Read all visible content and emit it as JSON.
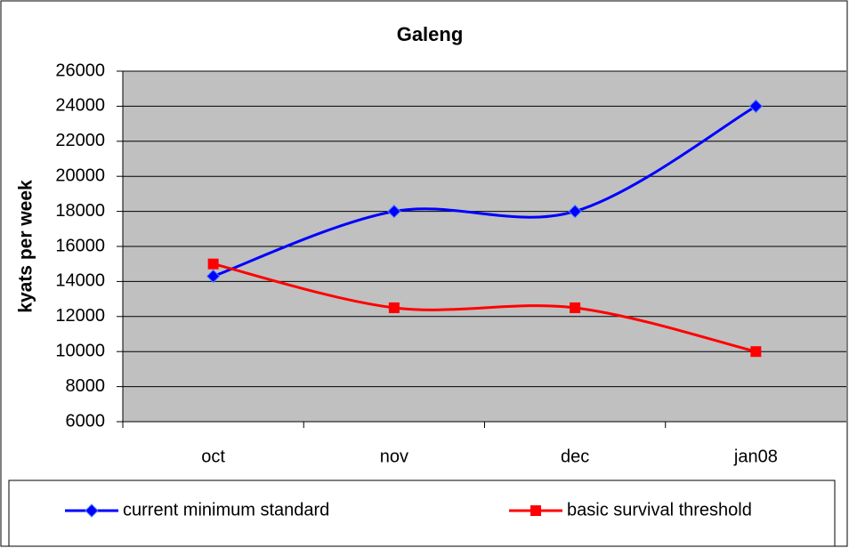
{
  "chart_data": {
    "type": "line",
    "title": "Galeng",
    "y_label": "kyats per week",
    "categories": [
      "oct",
      "nov",
      "dec",
      "jan08"
    ],
    "series": [
      {
        "name": "current minimum standard",
        "color": "#0000ff",
        "marker": "diamond",
        "values": [
          14300,
          18000,
          18000,
          24000
        ]
      },
      {
        "name": "basic survival threshold",
        "color": "#ff0000",
        "marker": "square",
        "values": [
          15000,
          12500,
          12500,
          10000
        ]
      }
    ],
    "ylim": [
      6000,
      26000
    ],
    "yticks": [
      6000,
      8000,
      10000,
      12000,
      14000,
      16000,
      18000,
      20000,
      22000,
      24000,
      26000
    ],
    "grid": true,
    "smooth": true,
    "legend": "bottom"
  }
}
